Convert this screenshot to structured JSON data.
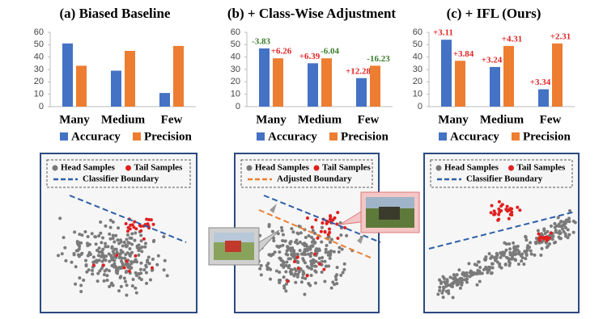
{
  "chart_data": [
    {
      "type": "bar",
      "title": "(a) Biased Baseline",
      "categories": [
        "Many",
        "Medium",
        "Few"
      ],
      "series": [
        {
          "name": "Accuracy",
          "color": "#4472c4",
          "values": [
            51,
            29,
            11
          ]
        },
        {
          "name": "Precision",
          "color": "#ed7d31",
          "values": [
            33,
            45,
            49
          ]
        }
      ],
      "ylim": [
        0,
        60
      ],
      "yticks": [
        0,
        10,
        20,
        30,
        40,
        50,
        60
      ]
    },
    {
      "type": "bar",
      "title": "(b) + Class-Wise Adjustment",
      "categories": [
        "Many",
        "Medium",
        "Few"
      ],
      "series": [
        {
          "name": "Accuracy",
          "color": "#4472c4",
          "values": [
            47,
            35,
            23
          ],
          "annotations": [
            "-3.83",
            "+6.39",
            "+12.28"
          ]
        },
        {
          "name": "Precision",
          "color": "#ed7d31",
          "values": [
            39,
            39,
            33
          ],
          "annotations": [
            "+6.26",
            "-6.04",
            "-16.23"
          ]
        }
      ],
      "ylim": [
        0,
        60
      ],
      "yticks": [
        0,
        10,
        20,
        30,
        40,
        50,
        60
      ]
    },
    {
      "type": "bar",
      "title": "(c) + IFL (Ours)",
      "categories": [
        "Many",
        "Medium",
        "Few"
      ],
      "series": [
        {
          "name": "Accuracy",
          "color": "#4472c4",
          "values": [
            54,
            32,
            14
          ],
          "annotations": [
            "+3.11",
            "+3.24",
            "+3.34"
          ]
        },
        {
          "name": "Precision",
          "color": "#ed7d31",
          "values": [
            37,
            49,
            51
          ],
          "annotations": [
            "+3.84",
            "+4.31",
            "+2.31"
          ]
        }
      ],
      "ylim": [
        0,
        60
      ],
      "yticks": [
        0,
        10,
        20,
        30,
        40,
        50,
        60
      ]
    }
  ],
  "illustrations": [
    {
      "legend": [
        "Head Samples",
        "Tail Samples",
        "Classifier Boundary"
      ]
    },
    {
      "legend": [
        "Head Samples",
        "Tail Samples",
        "Adjusted Boundary"
      ]
    },
    {
      "legend": [
        "Head Samples",
        "Tail Samples",
        "Classifier Boundary"
      ]
    }
  ]
}
